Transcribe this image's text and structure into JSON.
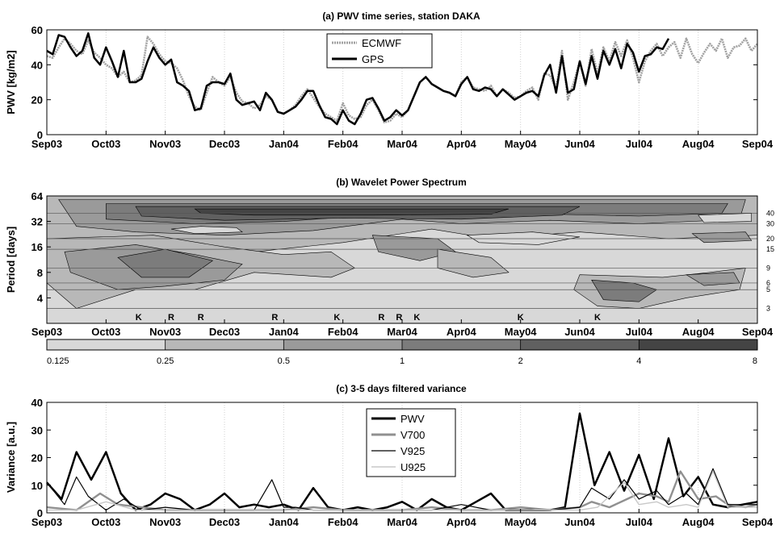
{
  "chart_data": [
    {
      "type": "line",
      "title": "(a) PWV time series, station DAKA",
      "ylabel": "PWV [kg/m2]",
      "ylim": [
        0,
        60
      ],
      "yticks": [
        0,
        20,
        40,
        60
      ],
      "xticks": [
        "Sep03",
        "Oct03",
        "Nov03",
        "Dec03",
        "Jan04",
        "Feb04",
        "Mar04",
        "Apr04",
        "May04",
        "Jun04",
        "Jul04",
        "Aug04",
        "Sep04"
      ],
      "grid": "vertical",
      "legend_position": "top-center",
      "series": [
        {
          "name": "ECMWF",
          "color": "#a0a0a0",
          "x": [
            0,
            0.1,
            0.2,
            0.3,
            0.4,
            0.5,
            0.6,
            0.7,
            0.8,
            0.9,
            1.0,
            1.1,
            1.2,
            1.3,
            1.4,
            1.5,
            1.6,
            1.7,
            1.8,
            1.9,
            2.0,
            2.1,
            2.2,
            2.3,
            2.4,
            2.5,
            2.6,
            2.7,
            2.8,
            2.9,
            3.0,
            3.1,
            3.2,
            3.3,
            3.4,
            3.5,
            3.6,
            3.7,
            3.8,
            3.9,
            4.0,
            4.1,
            4.2,
            4.3,
            4.4,
            4.5,
            4.6,
            4.7,
            4.8,
            4.9,
            5.0,
            5.1,
            5.2,
            5.3,
            5.4,
            5.5,
            5.6,
            5.7,
            5.8,
            5.9,
            6.0,
            6.1,
            6.2,
            6.3,
            6.4,
            6.5,
            6.6,
            6.7,
            6.8,
            6.9,
            7.0,
            7.1,
            7.2,
            7.3,
            7.4,
            7.5,
            7.6,
            7.7,
            7.8,
            7.9,
            8.0,
            8.1,
            8.2,
            8.3,
            8.4,
            8.5,
            8.6,
            8.7,
            8.8,
            8.9,
            9.0,
            9.1,
            9.2,
            9.3,
            9.4,
            9.5,
            9.6,
            9.7,
            9.8,
            9.9,
            10.0,
            10.1,
            10.2,
            10.3,
            10.4,
            10.5,
            10.6,
            10.7,
            10.8,
            10.9,
            11.0,
            11.1,
            11.2,
            11.3,
            11.4,
            11.5,
            11.6,
            11.7,
            11.8,
            11.9,
            12.0
          ],
          "values": [
            45,
            44,
            50,
            55,
            52,
            48,
            46,
            54,
            47,
            44,
            40,
            38,
            33,
            36,
            30,
            31,
            34,
            56,
            52,
            46,
            42,
            41,
            38,
            31,
            22,
            16,
            14,
            24,
            33,
            30,
            28,
            33,
            24,
            19,
            18,
            15,
            17,
            22,
            20,
            13,
            12,
            14,
            17,
            22,
            26,
            21,
            16,
            12,
            10,
            8,
            18,
            11,
            9,
            10,
            17,
            20,
            14,
            7,
            8,
            12,
            10,
            14,
            22,
            30,
            33,
            29,
            27,
            25,
            24,
            22,
            30,
            33,
            27,
            26,
            25,
            28,
            22,
            26,
            24,
            21,
            22,
            25,
            27,
            20,
            35,
            34,
            26,
            48,
            20,
            30,
            42,
            28,
            49,
            35,
            50,
            42,
            53,
            45,
            54,
            44,
            30,
            42,
            48,
            52,
            45,
            50,
            53,
            44,
            55,
            46,
            41,
            47,
            52,
            48,
            55,
            44,
            50,
            51,
            55,
            48,
            52
          ]
        },
        {
          "name": "GPS",
          "color": "#000000",
          "x": [
            0,
            0.1,
            0.2,
            0.3,
            0.4,
            0.5,
            0.6,
            0.7,
            0.8,
            0.9,
            1.0,
            1.1,
            1.2,
            1.3,
            1.4,
            1.5,
            1.6,
            1.7,
            1.8,
            1.9,
            2.0,
            2.1,
            2.2,
            2.3,
            2.4,
            2.5,
            2.6,
            2.7,
            2.8,
            2.9,
            3.0,
            3.1,
            3.2,
            3.3,
            3.4,
            3.5,
            3.6,
            3.7,
            3.8,
            3.9,
            4.0,
            4.1,
            4.2,
            4.3,
            4.4,
            4.5,
            4.6,
            4.7,
            4.8,
            4.9,
            5.0,
            5.1,
            5.2,
            5.3,
            5.4,
            5.5,
            5.6,
            5.7,
            5.8,
            5.9,
            6.0,
            6.1,
            6.2,
            6.3,
            6.4,
            6.5,
            6.6,
            6.7,
            6.8,
            6.9,
            7.0,
            7.1,
            7.2,
            7.3,
            7.4,
            7.5,
            7.6,
            7.7,
            7.8,
            7.9,
            8.0,
            8.1,
            8.2,
            8.3,
            8.4,
            8.5,
            8.6,
            8.7,
            8.8,
            8.9,
            9.0,
            9.1,
            9.2,
            9.3,
            9.4,
            9.5,
            9.6,
            9.7,
            9.8,
            9.9,
            10.0,
            10.1,
            10.2,
            10.3,
            10.4,
            10.5
          ],
          "values": [
            48,
            46,
            57,
            56,
            50,
            45,
            48,
            58,
            44,
            40,
            50,
            42,
            33,
            48,
            30,
            30,
            32,
            42,
            50,
            44,
            40,
            43,
            30,
            28,
            25,
            14,
            15,
            28,
            30,
            30,
            29,
            35,
            20,
            17,
            18,
            19,
            14,
            24,
            20,
            13,
            12,
            14,
            16,
            20,
            25,
            25,
            17,
            10,
            9,
            6,
            14,
            8,
            6,
            12,
            20,
            21,
            15,
            8,
            10,
            14,
            11,
            14,
            22,
            30,
            33,
            29,
            27,
            25,
            24,
            22,
            29,
            33,
            26,
            25,
            27,
            26,
            22,
            26,
            23,
            20,
            22,
            24,
            25,
            22,
            34,
            40,
            24,
            45,
            24,
            26,
            42,
            29,
            45,
            32,
            48,
            40,
            49,
            38,
            52,
            47,
            36,
            45,
            46,
            50,
            49,
            55
          ]
        }
      ]
    },
    {
      "type": "heatmap",
      "title": "(b) Wavelet Power Spectrum",
      "ylabel": "Period [days]",
      "yscale": "log2",
      "ylim": [
        2,
        64
      ],
      "yticks": [
        4,
        8,
        16,
        32,
        64
      ],
      "xticks": [
        "Sep03",
        "Oct03",
        "Nov03",
        "Dec03",
        "Jan04",
        "Feb04",
        "Mar04",
        "Apr04",
        "May04",
        "Jun04",
        "Jul04",
        "Aug04",
        "Sep04"
      ],
      "right_ticks": [
        "40",
        "30",
        "20",
        "15",
        "9",
        "6",
        "5",
        "3"
      ],
      "right_tick_periods": [
        40,
        30,
        20,
        15,
        9,
        6,
        5,
        3
      ],
      "events": [
        {
          "label": "K",
          "x": 1.55
        },
        {
          "label": "R",
          "x": 2.1
        },
        {
          "label": "R",
          "x": 2.6
        },
        {
          "label": "R",
          "x": 3.85
        },
        {
          "label": "K",
          "x": 4.9
        },
        {
          "label": "R",
          "x": 5.65
        },
        {
          "label": "R",
          "x": 5.95
        },
        {
          "label": "K",
          "x": 6.25
        },
        {
          "label": "K",
          "x": 8.0
        },
        {
          "label": "K",
          "x": 9.3
        }
      ],
      "colorbar": {
        "ticks": [
          "0.125",
          "0.25",
          "0.5",
          "1",
          "2",
          "4",
          "8"
        ],
        "colors": [
          "#d8d8d8",
          "#b8b8b8",
          "#9a9a9a",
          "#7c7c7c",
          "#606060",
          "#444444"
        ]
      }
    },
    {
      "type": "line",
      "title": "(c) 3-5 days filtered variance",
      "ylabel": "Variance [a.u.]",
      "ylim": [
        0,
        40
      ],
      "yticks": [
        0,
        10,
        20,
        30,
        40
      ],
      "xticks": [
        "Sep03",
        "Oct03",
        "Nov03",
        "Dec03",
        "Jan04",
        "Feb04",
        "Mar04",
        "Apr04",
        "May04",
        "Jun04",
        "Jul04",
        "Aug04",
        "Sep04"
      ],
      "grid": "vertical",
      "legend_position": "top-center",
      "series": [
        {
          "name": "PWV",
          "color": "#000000",
          "x": [
            0,
            0.25,
            0.5,
            0.75,
            1.0,
            1.25,
            1.5,
            1.75,
            2.0,
            2.25,
            2.5,
            2.75,
            3.0,
            3.25,
            3.5,
            3.75,
            4.0,
            4.25,
            4.5,
            4.75,
            5.0,
            5.25,
            5.5,
            5.75,
            6.0,
            6.25,
            6.5,
            6.75,
            7.0,
            7.25,
            7.5,
            7.75,
            8.0,
            8.25,
            8.5,
            8.75,
            9.0,
            9.25,
            9.5,
            9.75,
            10.0,
            10.25,
            10.5,
            10.75,
            11.0,
            11.25,
            11.5,
            11.75,
            12.0
          ],
          "values": [
            11,
            5,
            22,
            12,
            22,
            7,
            1,
            3,
            7,
            5,
            1,
            3,
            7,
            2,
            3,
            2,
            3,
            1,
            9,
            2,
            1,
            2,
            1,
            2,
            4,
            1,
            5,
            2,
            1,
            4,
            7,
            1,
            1,
            1,
            1,
            2,
            36,
            10,
            22,
            8,
            21,
            5,
            27,
            6,
            13,
            3,
            2,
            3,
            4
          ]
        },
        {
          "name": "V700",
          "color": "#909090",
          "x": [
            0,
            0.5,
            0.9,
            1.2,
            1.6,
            2.0,
            2.5,
            3.0,
            3.5,
            4.0,
            4.5,
            5.0,
            5.5,
            6.0,
            6.5,
            7.0,
            7.5,
            8.0,
            8.5,
            9.0,
            9.2,
            9.5,
            9.8,
            10.0,
            10.3,
            10.5,
            10.7,
            11.0,
            11.3,
            11.5,
            11.8,
            12.0
          ],
          "values": [
            2,
            1,
            7,
            3,
            2,
            1,
            1,
            1,
            1,
            1,
            2,
            1,
            1,
            1,
            2,
            1,
            1,
            2,
            1,
            2,
            4,
            2,
            5,
            7,
            6,
            4,
            15,
            5,
            6,
            3,
            2,
            3
          ]
        },
        {
          "name": "V925",
          "color": "#000000",
          "x": [
            0,
            0.3,
            0.5,
            0.7,
            1.0,
            1.3,
            1.6,
            2.0,
            2.5,
            3.0,
            3.5,
            3.8,
            4.0,
            4.2,
            4.5,
            5.0,
            5.5,
            6.0,
            6.5,
            7.0,
            7.5,
            8.0,
            8.5,
            9.0,
            9.2,
            9.5,
            9.75,
            10.0,
            10.3,
            10.5,
            10.8,
            11.0,
            11.25,
            11.5,
            12.0
          ],
          "values": [
            11,
            3,
            13,
            6,
            1,
            5,
            1,
            2,
            1,
            1,
            1,
            12,
            2,
            2,
            1,
            1,
            1,
            1,
            1,
            3,
            1,
            1,
            1,
            2,
            9,
            5,
            12,
            5,
            8,
            3,
            7,
            3,
            16,
            3,
            3
          ]
        },
        {
          "name": "U925",
          "color": "#c8c8c8",
          "x": [
            0,
            0.5,
            1.0,
            1.5,
            2.0,
            2.5,
            3.0,
            3.5,
            4.0,
            4.5,
            5.0,
            5.5,
            6.0,
            6.5,
            7.0,
            7.5,
            8.0,
            8.5,
            9.0,
            9.3,
            9.75,
            10.0,
            10.3,
            10.5,
            10.8,
            11.0,
            11.25,
            11.5,
            12.0
          ],
          "values": [
            1,
            1,
            4,
            1,
            1,
            1,
            1,
            1,
            1,
            1,
            1,
            1,
            1,
            1,
            1,
            1,
            1,
            1,
            1,
            2,
            11,
            3,
            4,
            2,
            3,
            2,
            15,
            2,
            2
          ]
        }
      ]
    }
  ]
}
